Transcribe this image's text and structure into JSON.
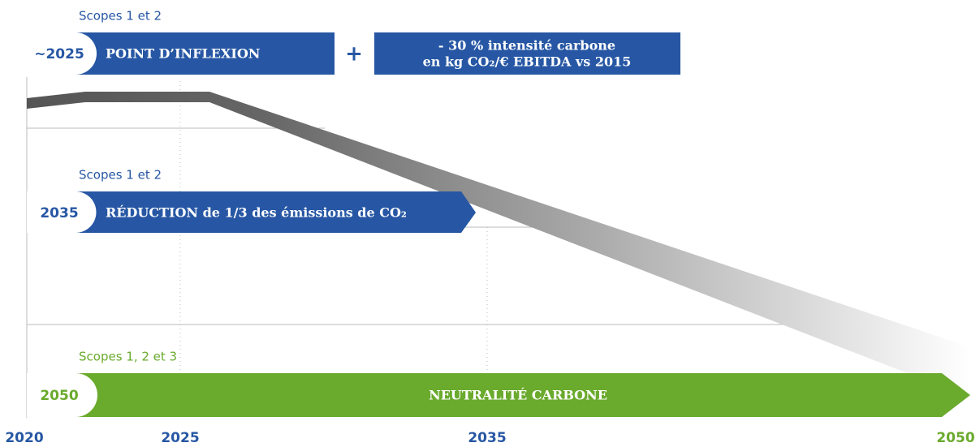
{
  "milestones": [
    {
      "scope": "Scopes 1 et 2",
      "year": "~2025",
      "label": "POINT D’INFLEXION"
    },
    {
      "scope": "Scopes 1 et 2",
      "year": "2035",
      "label": "RÉDUCTION de 1/3 des émissions de CO₂"
    },
    {
      "scope": "Scopes 1, 2 et 3",
      "year": "2050",
      "label": "NEUTRALITÉ CARBONE"
    }
  ],
  "plus": "+",
  "target": {
    "line1": "- 30 % intensité carbone",
    "line2": "en kg CO₂/€ EBITDA vs 2015"
  },
  "axis_years": [
    "2020",
    "2025",
    "2035",
    "2050"
  ]
}
